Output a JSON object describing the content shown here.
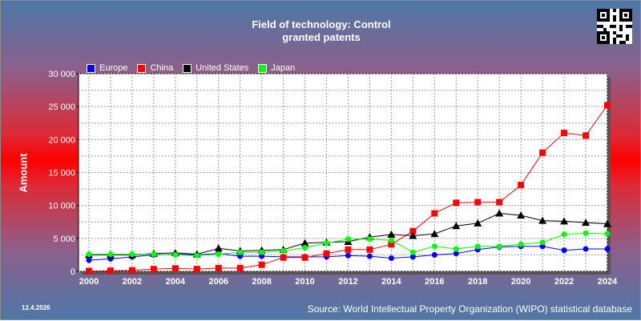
{
  "header": {
    "title_line1": "Field of technology: Control",
    "title_line2": "granted patents"
  },
  "footer": {
    "date": "12.4.2026",
    "source": "Source: World Intellectual Property Organization (WIPO) statistical database"
  },
  "colors": {
    "Europe": "#0000ff",
    "China": "#ff0000",
    "United States": "#000000",
    "Japan": "#00ff00"
  },
  "chart_data": {
    "type": "line",
    "title": "Field of technology: Control granted patents",
    "xlabel": "",
    "ylabel": "Amount",
    "x": [
      2000,
      2001,
      2002,
      2003,
      2004,
      2005,
      2006,
      2007,
      2008,
      2009,
      2010,
      2011,
      2012,
      2013,
      2014,
      2015,
      2016,
      2017,
      2018,
      2019,
      2020,
      2021,
      2022,
      2023,
      2024
    ],
    "xticks": [
      "2000",
      "2002",
      "2004",
      "2006",
      "2008",
      "2010",
      "2012",
      "2014",
      "2016",
      "2018",
      "2020",
      "2022",
      "2024"
    ],
    "yticks": [
      "0",
      "5 000",
      "10 000",
      "15 000",
      "20 000",
      "25 000",
      "30 000"
    ],
    "ylim": [
      0,
      30000
    ],
    "grid": true,
    "legend_position": "top-left",
    "series": [
      {
        "name": "Europe",
        "marker": "circle",
        "values": [
          1700,
          1900,
          2200,
          2500,
          2600,
          2500,
          2700,
          2300,
          2300,
          2200,
          2200,
          2200,
          2400,
          2300,
          2000,
          2200,
          2500,
          2700,
          3300,
          3700,
          3800,
          3800,
          3200,
          3400,
          3400
        ]
      },
      {
        "name": "China",
        "marker": "square",
        "values": [
          50,
          100,
          150,
          350,
          450,
          350,
          500,
          500,
          1000,
          2100,
          2100,
          2700,
          3300,
          3300,
          4100,
          6100,
          8800,
          10400,
          10500,
          10500,
          13100,
          18000,
          21000,
          20600,
          25200
        ]
      },
      {
        "name": "United States",
        "marker": "triangle",
        "values": [
          2500,
          2500,
          2500,
          2700,
          2800,
          2600,
          3500,
          3100,
          3200,
          3300,
          4300,
          4400,
          4500,
          5200,
          5600,
          5400,
          5700,
          6900,
          7300,
          8800,
          8500,
          7700,
          7600,
          7400,
          7200
        ]
      },
      {
        "name": "Japan",
        "marker": "circle",
        "values": [
          2600,
          2600,
          2600,
          2600,
          2500,
          2400,
          2600,
          2900,
          2900,
          3100,
          3600,
          4300,
          4900,
          4900,
          4700,
          2900,
          3800,
          3400,
          3800,
          3800,
          4100,
          4400,
          5600,
          5800,
          5700
        ]
      }
    ]
  }
}
